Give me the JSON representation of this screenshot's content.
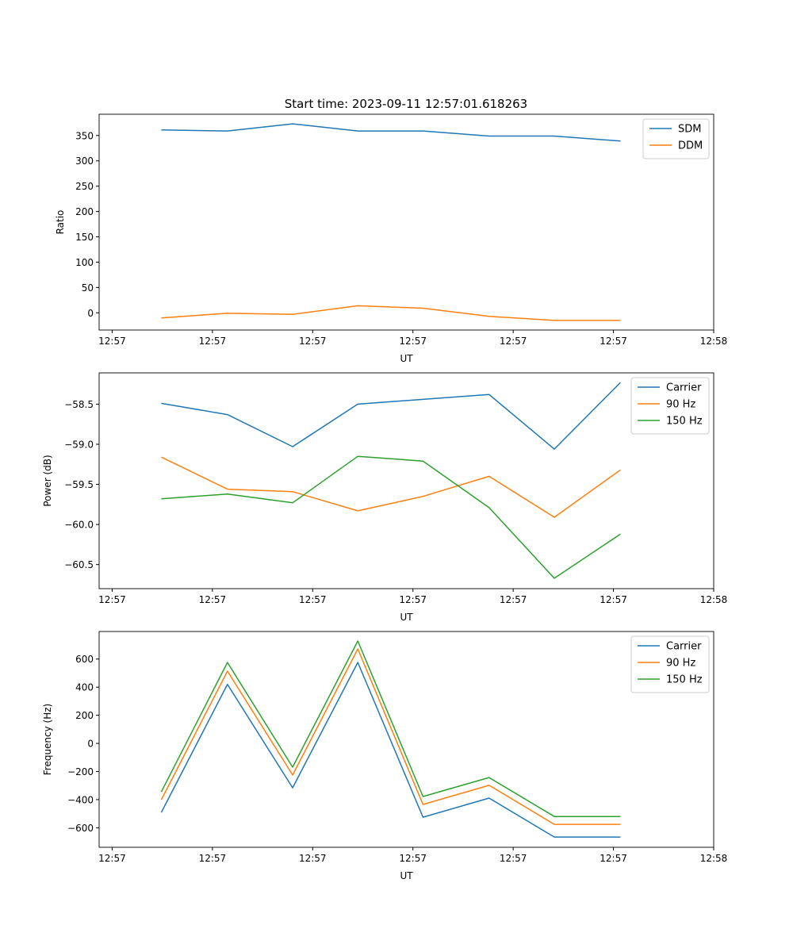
{
  "title": "Start time: 2023-09-11 12:57:01.618263",
  "chart_data": [
    {
      "type": "line",
      "ylabel": "Ratio",
      "xlabel": "UT",
      "xlim": [
        -0.13,
        6.0
      ],
      "ylim": [
        -34,
        392
      ],
      "xticks": [
        0,
        1,
        2,
        3,
        4,
        5,
        6
      ],
      "xtick_labels": [
        "12:57",
        "12:57",
        "12:57",
        "12:57",
        "12:57",
        "12:57",
        "12:58"
      ],
      "yticks": [
        0,
        50,
        100,
        150,
        200,
        250,
        300,
        350
      ],
      "ytick_labels": [
        "0",
        "50",
        "100",
        "150",
        "200",
        "250",
        "300",
        "350"
      ],
      "legend": "top-right",
      "x": [
        0.49,
        1.15,
        1.8,
        2.45,
        3.1,
        3.76,
        4.41,
        5.07
      ],
      "series": [
        {
          "name": "SDM",
          "color": "#1f77b4",
          "values": [
            361,
            359,
            373,
            359,
            359,
            349,
            349,
            339
          ]
        },
        {
          "name": "DDM",
          "color": "#ff7f0e",
          "values": [
            -10,
            -1,
            -3,
            14,
            9,
            -7,
            -15,
            -15
          ]
        }
      ]
    },
    {
      "type": "line",
      "ylabel": "Power (dB)",
      "xlabel": "UT",
      "xlim": [
        -0.13,
        6.0
      ],
      "ylim": [
        -60.8,
        -58.11
      ],
      "xticks": [
        0,
        1,
        2,
        3,
        4,
        5,
        6
      ],
      "xtick_labels": [
        "12:57",
        "12:57",
        "12:57",
        "12:57",
        "12:57",
        "12:57",
        "12:58"
      ],
      "yticks": [
        -60.5,
        -60.0,
        -59.5,
        -59.0,
        -58.5
      ],
      "ytick_labels": [
        "−60.5",
        "−60.0",
        "−59.5",
        "−59.0",
        "−58.5"
      ],
      "legend": "top-right",
      "x": [
        0.49,
        1.15,
        1.8,
        2.45,
        3.1,
        3.76,
        4.41,
        5.07
      ],
      "series": [
        {
          "name": "Carrier",
          "color": "#1f77b4",
          "values": [
            -58.49,
            -58.63,
            -59.03,
            -58.5,
            -58.44,
            -58.38,
            -59.06,
            -58.23
          ]
        },
        {
          "name": "90 Hz",
          "color": "#ff7f0e",
          "values": [
            -59.16,
            -59.56,
            -59.59,
            -59.83,
            -59.65,
            -59.4,
            -59.91,
            -59.32
          ]
        },
        {
          "name": "150 Hz",
          "color": "#2ca02c",
          "values": [
            -59.68,
            -59.62,
            -59.73,
            -59.15,
            -59.21,
            -59.79,
            -60.67,
            -60.12
          ]
        }
      ]
    },
    {
      "type": "line",
      "ylabel": "Frequency (Hz)",
      "xlabel": "UT",
      "xlim": [
        -0.13,
        6.0
      ],
      "ylim": [
        -739,
        796
      ],
      "xticks": [
        0,
        1,
        2,
        3,
        4,
        5,
        6
      ],
      "xtick_labels": [
        "12:57",
        "12:57",
        "12:57",
        "12:57",
        "12:57",
        "12:57",
        "12:58"
      ],
      "yticks": [
        -600,
        -400,
        -200,
        0,
        200,
        400,
        600
      ],
      "ytick_labels": [
        "−600",
        "−400",
        "−200",
        "0",
        "200",
        "400",
        "600"
      ],
      "legend": "top-right",
      "x": [
        0.49,
        1.15,
        1.8,
        2.45,
        3.1,
        3.76,
        4.41,
        5.07
      ],
      "series": [
        {
          "name": "Carrier",
          "color": "#1f77b4",
          "values": [
            -491,
            420,
            -316,
            576,
            -525,
            -389,
            -666,
            -666
          ]
        },
        {
          "name": "90 Hz",
          "color": "#ff7f0e",
          "values": [
            -401,
            514,
            -225,
            672,
            -434,
            -298,
            -576,
            -576
          ]
        },
        {
          "name": "150 Hz",
          "color": "#2ca02c",
          "values": [
            -345,
            576,
            -169,
            728,
            -378,
            -243,
            -520,
            -520
          ]
        }
      ]
    }
  ]
}
